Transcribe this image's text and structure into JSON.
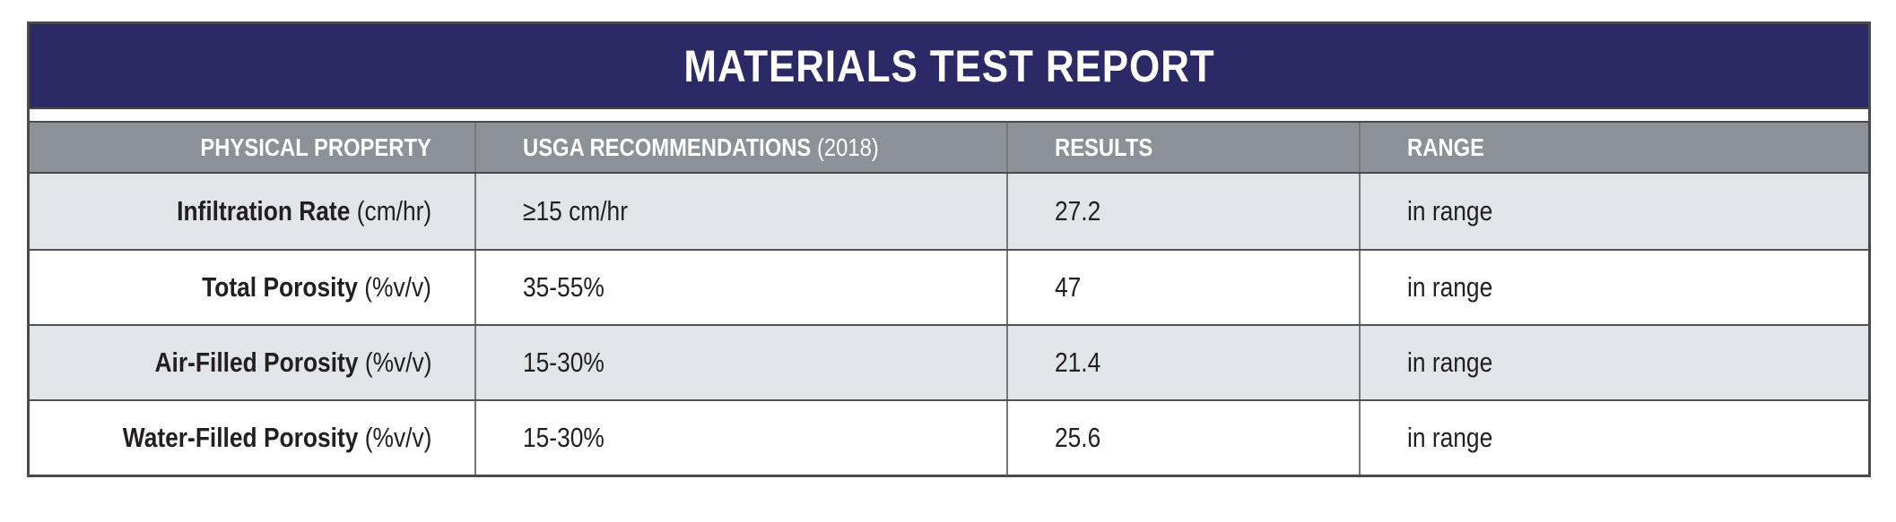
{
  "report": {
    "title": "MATERIALS TEST REPORT",
    "header": {
      "physical_property": "PHYSICAL PROPERTY",
      "usga_recommendations": "USGA RECOMMENDATIONS",
      "usga_year": "(2018)",
      "results": "RESULTS",
      "range": "RANGE"
    },
    "rows": [
      {
        "property": "Infiltration Rate",
        "unit": "(cm/hr)",
        "usga_recommendation": "≥15 cm/hr",
        "result": "27.2",
        "range": "in range"
      },
      {
        "property": "Total Porosity",
        "unit": "(%v/v)",
        "usga_recommendation": "35-55%",
        "result": "47",
        "range": "in range"
      },
      {
        "property": "Air-Filled Porosity",
        "unit": "(%v/v)",
        "usga_recommendation": "15-30%",
        "result": "21.4",
        "range": "in range"
      },
      {
        "property": "Water-Filled Porosity",
        "unit": "(%v/v)",
        "usga_recommendation": "15-30%",
        "result": "25.6",
        "range": "in range"
      }
    ],
    "colors": {
      "title_band": "#2B2A66",
      "header_row": "#8C9197",
      "row_alt": "#E1E5E9",
      "border_dark": "#4A4A4C",
      "divider": "#76777A",
      "text": "#231F20"
    }
  }
}
